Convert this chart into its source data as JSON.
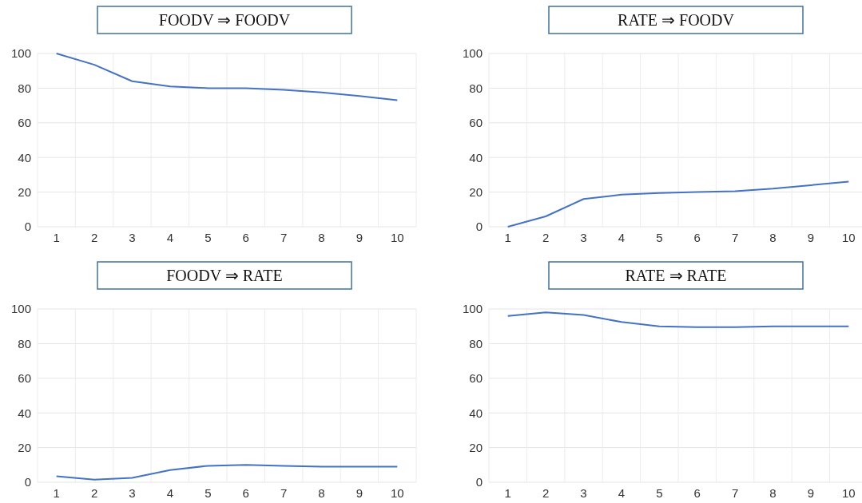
{
  "chart_data": [
    {
      "type": "line",
      "title": "FOODV ⇒ FOODV",
      "categories": [
        "1",
        "2",
        "3",
        "4",
        "5",
        "6",
        "7",
        "8",
        "9",
        "10"
      ],
      "series": [
        {
          "color": "#4472c4",
          "values": [
            100,
            93.5,
            84,
            81,
            80,
            80,
            79,
            77.5,
            75.5,
            73
          ]
        }
      ],
      "ylim": [
        0,
        100
      ],
      "yticks": [
        0,
        20,
        40,
        60,
        80,
        100
      ],
      "grid": true
    },
    {
      "type": "line",
      "title": "RATE ⇒ FOODV",
      "categories": [
        "1",
        "2",
        "3",
        "4",
        "5",
        "6",
        "7",
        "8",
        "9",
        "10"
      ],
      "series": [
        {
          "color": "#4472c4",
          "values": [
            0,
            6,
            16,
            18.5,
            19.5,
            20,
            20.5,
            22,
            24,
            26
          ]
        }
      ],
      "ylim": [
        0,
        100
      ],
      "yticks": [
        0,
        20,
        40,
        60,
        80,
        100
      ],
      "grid": true
    },
    {
      "type": "line",
      "title": "FOODV ⇒ RATE",
      "categories": [
        "1",
        "2",
        "3",
        "4",
        "5",
        "6",
        "7",
        "8",
        "9",
        "10"
      ],
      "series": [
        {
          "color": "#4472c4",
          "values": [
            3.5,
            1.5,
            2.5,
            7,
            9.5,
            10,
            9.5,
            9,
            9,
            9
          ]
        }
      ],
      "ylim": [
        0,
        100
      ],
      "yticks": [
        0,
        20,
        40,
        60,
        80,
        100
      ],
      "grid": true
    },
    {
      "type": "line",
      "title": "RATE ⇒ RATE",
      "categories": [
        "1",
        "2",
        "3",
        "4",
        "5",
        "6",
        "7",
        "8",
        "9",
        "10"
      ],
      "series": [
        {
          "color": "#4472c4",
          "values": [
            96,
            98,
            96.5,
            92.5,
            90,
            89.5,
            89.5,
            90,
            90,
            90
          ]
        }
      ],
      "ylim": [
        0,
        100
      ],
      "yticks": [
        0,
        20,
        40,
        60,
        80,
        100
      ],
      "grid": true
    }
  ]
}
